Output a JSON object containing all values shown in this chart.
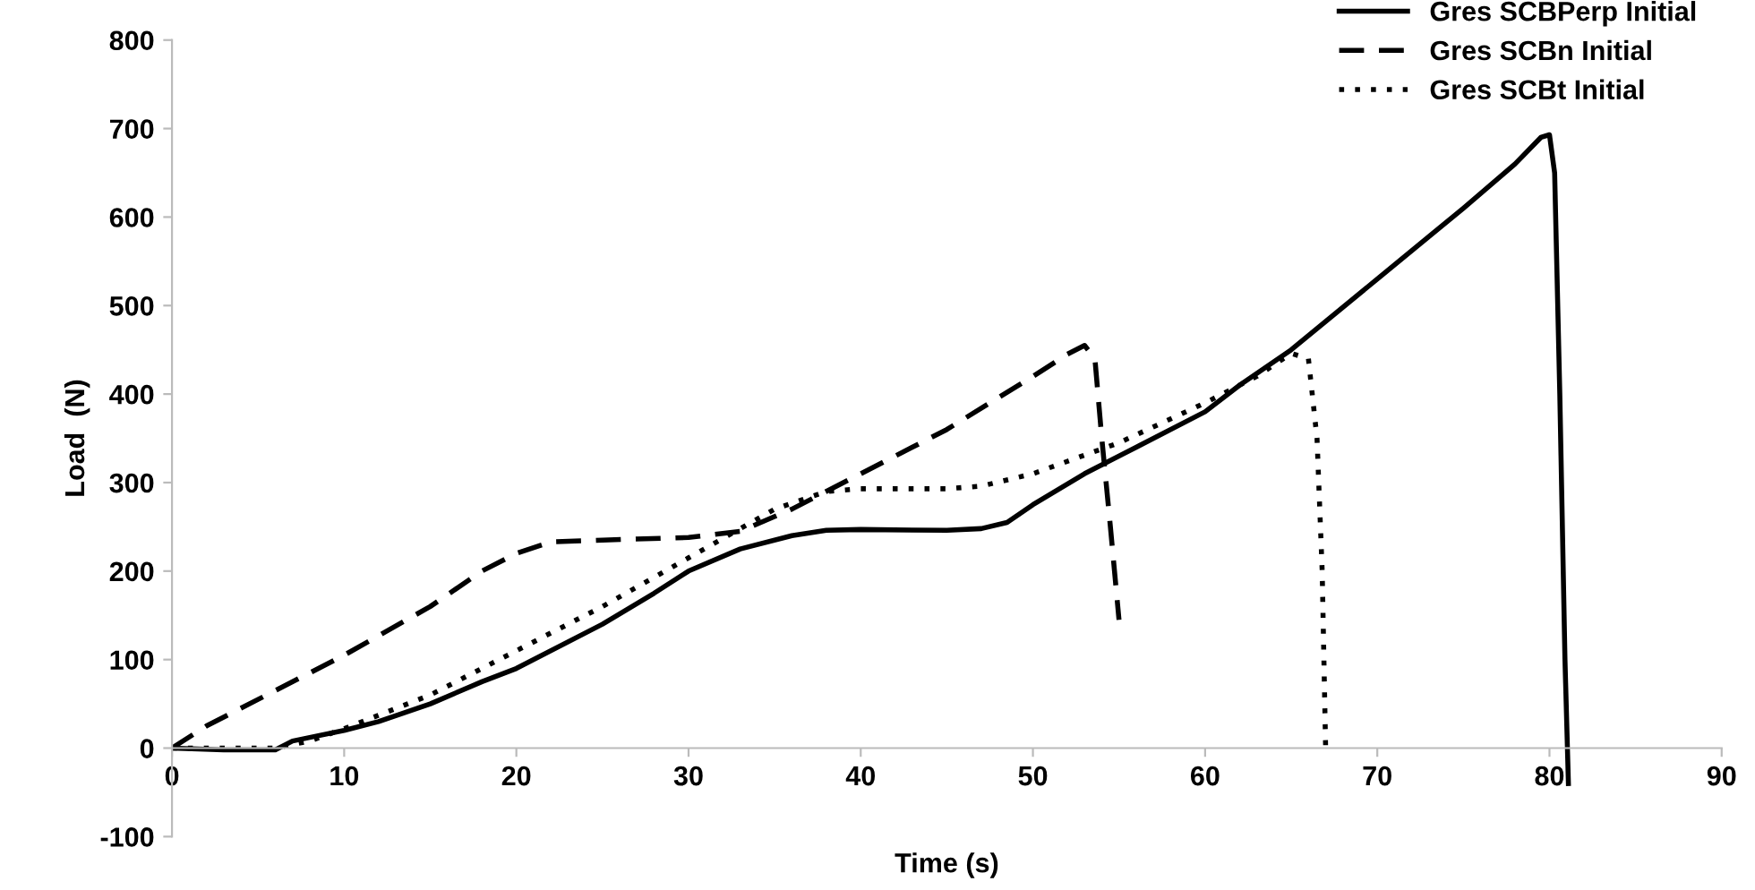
{
  "chart_data": {
    "type": "line",
    "xlabel": "Time (s)",
    "ylabel": "Load  (N)",
    "xlim": [
      0,
      90
    ],
    "xticks": [
      0,
      10,
      20,
      30,
      40,
      50,
      60,
      70,
      80,
      90
    ],
    "ylim": [
      -100,
      800
    ],
    "yticks": [
      -100,
      0,
      100,
      200,
      300,
      400,
      500,
      600,
      700,
      800
    ],
    "grid": false,
    "legend": "top right",
    "marker": "none",
    "series": [
      {
        "name": "Gres SCBPerp Initial",
        "color": "#000000",
        "line_style": "solid",
        "x": [
          0,
          3,
          6,
          7,
          8,
          10,
          12,
          15,
          18,
          20,
          25,
          28,
          30,
          33,
          36,
          38,
          40,
          45,
          47,
          48.5,
          50,
          53,
          56,
          60,
          62,
          65,
          70,
          75,
          78,
          79.5,
          80,
          80.3,
          80.6,
          80.9,
          81.1
        ],
        "values": [
          0,
          -2,
          -2,
          8,
          12,
          20,
          30,
          50,
          75,
          90,
          140,
          175,
          200,
          225,
          240,
          246,
          247,
          246,
          248,
          255,
          275,
          310,
          340,
          380,
          410,
          450,
          530,
          610,
          660,
          690,
          693,
          650,
          400,
          100,
          -40
        ]
      },
      {
        "name": "Gres SCBn Initial",
        "color": "#000000",
        "line_style": "dashed",
        "x": [
          0,
          2,
          5,
          10,
          15,
          18,
          20,
          22,
          25,
          30,
          33,
          36,
          40,
          45,
          50,
          52,
          53,
          53.6,
          54,
          54.5,
          55
        ],
        "values": [
          0,
          25,
          55,
          105,
          160,
          200,
          220,
          233,
          235,
          238,
          245,
          270,
          310,
          360,
          420,
          445,
          455,
          440,
          350,
          250,
          145
        ]
      },
      {
        "name": "Gres SCBt Initial",
        "color": "#000000",
        "line_style": "dotted",
        "x": [
          0,
          6,
          8,
          10,
          15,
          20,
          25,
          30,
          35,
          38,
          40,
          45,
          47,
          50,
          55,
          60,
          63,
          65,
          66,
          66.5,
          66.8,
          67
        ],
        "values": [
          0,
          0,
          8,
          22,
          60,
          110,
          160,
          215,
          270,
          290,
          293,
          293,
          296,
          310,
          345,
          390,
          420,
          446,
          440,
          350,
          200,
          0
        ]
      }
    ]
  }
}
